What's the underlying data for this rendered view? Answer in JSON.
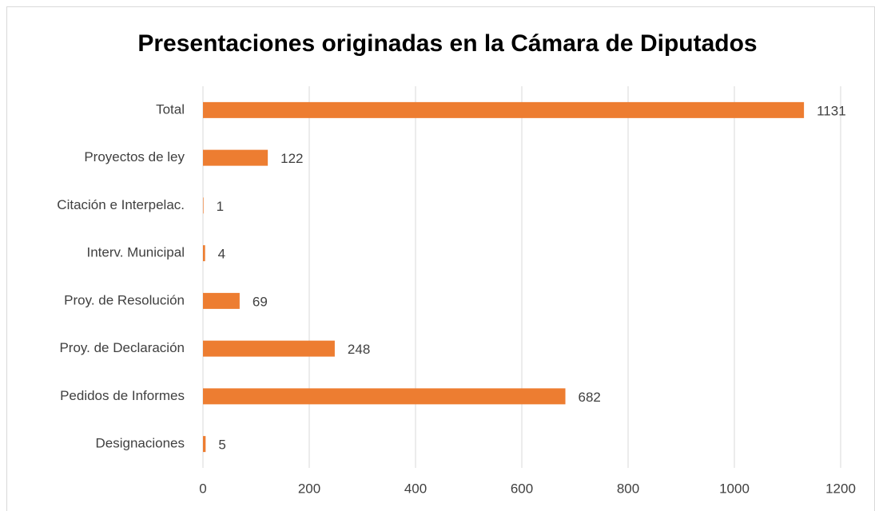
{
  "chart_data": {
    "type": "bar",
    "orientation": "horizontal",
    "title": "Presentaciones originadas en la Cámara de Diputados",
    "categories": [
      "Total",
      "Proyectos de ley",
      "Citación e Interpelac.",
      "Interv. Municipal",
      "Proy. de Resolución",
      "Proy. de Declaración",
      "Pedidos de Informes",
      "Designaciones"
    ],
    "values": [
      1131,
      122,
      1,
      4,
      69,
      248,
      682,
      5
    ],
    "color": "#ed7d31",
    "xlim": [
      0,
      1200
    ],
    "xticks": [
      0,
      200,
      400,
      600,
      800,
      1000,
      1200
    ],
    "grid": true
  }
}
